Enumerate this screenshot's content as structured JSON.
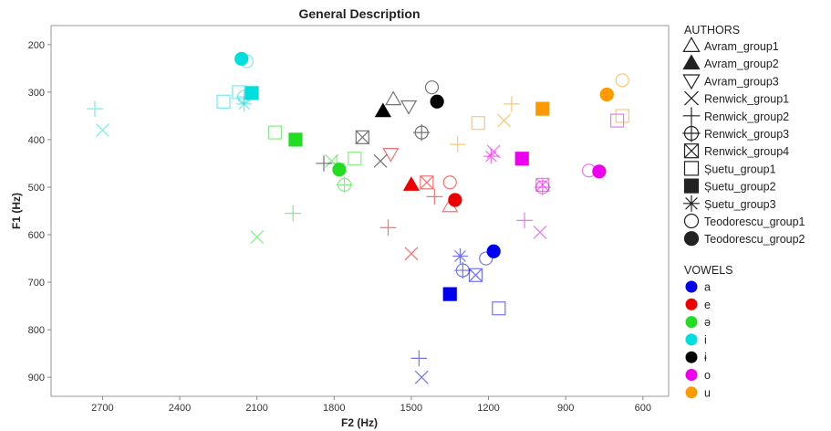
{
  "chart_data": {
    "type": "scatter",
    "title": "General Description",
    "xlabel": "F2 (Hz)",
    "ylabel": "F1 (Hz)",
    "x_reversed": true,
    "y_reversed": true,
    "xlim": [
      2900,
      500
    ],
    "ylim": [
      160,
      940
    ],
    "xticks": [
      2700,
      2400,
      2100,
      1800,
      1500,
      1200,
      900,
      600
    ],
    "yticks": [
      200,
      300,
      400,
      500,
      600,
      700,
      800,
      900
    ],
    "grid": false,
    "legend_placement": "right",
    "authors_title": "AUTHORS",
    "vowels_title": "VOWELS",
    "authors": [
      {
        "name": "Avram_group1",
        "marker": "triangle-up",
        "filled": false
      },
      {
        "name": "Avram_group2",
        "marker": "triangle-up",
        "filled": true
      },
      {
        "name": "Avram_group3",
        "marker": "triangle-down",
        "filled": false
      },
      {
        "name": "Renwick_group1",
        "marker": "x",
        "filled": false
      },
      {
        "name": "Renwick_group2",
        "marker": "plus",
        "filled": false
      },
      {
        "name": "Renwick_group3",
        "marker": "circle-plus",
        "filled": false
      },
      {
        "name": "Renwick_group4",
        "marker": "square-x",
        "filled": false
      },
      {
        "name": "Șuetu_group1",
        "marker": "square",
        "filled": false
      },
      {
        "name": "Șuetu_group2",
        "marker": "square",
        "filled": true
      },
      {
        "name": "Șuetu_group3",
        "marker": "asterisk",
        "filled": false
      },
      {
        "name": "Teodorescu_group1",
        "marker": "circle",
        "filled": false
      },
      {
        "name": "Teodorescu_group2",
        "marker": "circle",
        "filled": true
      }
    ],
    "vowels": [
      {
        "name": "a",
        "color": "#0000ee"
      },
      {
        "name": "e",
        "color": "#ee0000"
      },
      {
        "name": "ə",
        "color": "#22dd22"
      },
      {
        "name": "i",
        "color": "#00dddd"
      },
      {
        "name": "ɨ",
        "color": "#000000"
      },
      {
        "name": "o",
        "color": "#ee00ee"
      },
      {
        "name": "u",
        "color": "#ff9900"
      }
    ],
    "points": [
      {
        "author": "Avram_group1",
        "vowel": "e",
        "x": 1350,
        "y": 540
      },
      {
        "author": "Avram_group1",
        "vowel": "ɨ",
        "x": 1570,
        "y": 315
      },
      {
        "author": "Avram_group2",
        "vowel": "e",
        "x": 1500,
        "y": 495
      },
      {
        "author": "Avram_group2",
        "vowel": "ɨ",
        "x": 1610,
        "y": 340
      },
      {
        "author": "Avram_group3",
        "vowel": "e",
        "x": 1580,
        "y": 430
      },
      {
        "author": "Avram_group3",
        "vowel": "ɨ",
        "x": 1510,
        "y": 330
      },
      {
        "author": "Renwick_group1",
        "vowel": "a",
        "x": 1460,
        "y": 900
      },
      {
        "author": "Renwick_group1",
        "vowel": "e",
        "x": 1500,
        "y": 640
      },
      {
        "author": "Renwick_group1",
        "vowel": "ə",
        "x": 2100,
        "y": 605
      },
      {
        "author": "Renwick_group1",
        "vowel": "ə",
        "x": 1810,
        "y": 445
      },
      {
        "author": "Renwick_group1",
        "vowel": "i",
        "x": 2700,
        "y": 380
      },
      {
        "author": "Renwick_group1",
        "vowel": "o",
        "x": 1180,
        "y": 425
      },
      {
        "author": "Renwick_group1",
        "vowel": "o",
        "x": 1000,
        "y": 595
      },
      {
        "author": "Renwick_group1",
        "vowel": "u",
        "x": 1140,
        "y": 360
      },
      {
        "author": "Renwick_group1",
        "vowel": "ɨ",
        "x": 1620,
        "y": 445
      },
      {
        "author": "Renwick_group2",
        "vowel": "a",
        "x": 1470,
        "y": 860
      },
      {
        "author": "Renwick_group2",
        "vowel": "e",
        "x": 1590,
        "y": 585
      },
      {
        "author": "Renwick_group2",
        "vowel": "e",
        "x": 1410,
        "y": 520
      },
      {
        "author": "Renwick_group2",
        "vowel": "ə",
        "x": 1960,
        "y": 555
      },
      {
        "author": "Renwick_group2",
        "vowel": "ə",
        "x": 1790,
        "y": 450
      },
      {
        "author": "Renwick_group2",
        "vowel": "i",
        "x": 2730,
        "y": 335
      },
      {
        "author": "Renwick_group2",
        "vowel": "o",
        "x": 1060,
        "y": 570
      },
      {
        "author": "Renwick_group2",
        "vowel": "u",
        "x": 1320,
        "y": 410
      },
      {
        "author": "Renwick_group2",
        "vowel": "u",
        "x": 1110,
        "y": 325
      },
      {
        "author": "Renwick_group2",
        "vowel": "ɨ",
        "x": 1840,
        "y": 450
      },
      {
        "author": "Renwick_group3",
        "vowel": "a",
        "x": 1300,
        "y": 675
      },
      {
        "author": "Renwick_group3",
        "vowel": "ə",
        "x": 1760,
        "y": 495
      },
      {
        "author": "Renwick_group3",
        "vowel": "i",
        "x": 2150,
        "y": 310
      },
      {
        "author": "Renwick_group3",
        "vowel": "o",
        "x": 990,
        "y": 500
      },
      {
        "author": "Renwick_group3",
        "vowel": "ɨ",
        "x": 1460,
        "y": 385
      },
      {
        "author": "Renwick_group4",
        "vowel": "a",
        "x": 1250,
        "y": 685
      },
      {
        "author": "Renwick_group4",
        "vowel": "e",
        "x": 1440,
        "y": 490
      },
      {
        "author": "Renwick_group4",
        "vowel": "o",
        "x": 990,
        "y": 495
      },
      {
        "author": "Renwick_group4",
        "vowel": "ɨ",
        "x": 1690,
        "y": 395
      },
      {
        "author": "Șuetu_group1",
        "vowel": "a",
        "x": 1160,
        "y": 755
      },
      {
        "author": "Șuetu_group1",
        "vowel": "ə",
        "x": 2030,
        "y": 385
      },
      {
        "author": "Șuetu_group1",
        "vowel": "ə",
        "x": 1720,
        "y": 440
      },
      {
        "author": "Șuetu_group1",
        "vowel": "i",
        "x": 2230,
        "y": 320
      },
      {
        "author": "Șuetu_group1",
        "vowel": "i",
        "x": 2170,
        "y": 300
      },
      {
        "author": "Șuetu_group1",
        "vowel": "o",
        "x": 700,
        "y": 360
      },
      {
        "author": "Șuetu_group1",
        "vowel": "u",
        "x": 1240,
        "y": 365
      },
      {
        "author": "Șuetu_group1",
        "vowel": "u",
        "x": 680,
        "y": 350
      },
      {
        "author": "Șuetu_group2",
        "vowel": "a",
        "x": 1350,
        "y": 725
      },
      {
        "author": "Șuetu_group2",
        "vowel": "ə",
        "x": 1950,
        "y": 400
      },
      {
        "author": "Șuetu_group2",
        "vowel": "i",
        "x": 2120,
        "y": 302
      },
      {
        "author": "Șuetu_group2",
        "vowel": "o",
        "x": 1070,
        "y": 440
      },
      {
        "author": "Șuetu_group2",
        "vowel": "u",
        "x": 990,
        "y": 335
      },
      {
        "author": "Șuetu_group3",
        "vowel": "a",
        "x": 1310,
        "y": 645
      },
      {
        "author": "Șuetu_group3",
        "vowel": "i",
        "x": 2150,
        "y": 325
      },
      {
        "author": "Șuetu_group3",
        "vowel": "o",
        "x": 1190,
        "y": 435
      },
      {
        "author": "Teodorescu_group1",
        "vowel": "a",
        "x": 1210,
        "y": 650
      },
      {
        "author": "Teodorescu_group1",
        "vowel": "e",
        "x": 1350,
        "y": 490
      },
      {
        "author": "Teodorescu_group1",
        "vowel": "i",
        "x": 2140,
        "y": 235
      },
      {
        "author": "Teodorescu_group1",
        "vowel": "o",
        "x": 810,
        "y": 465
      },
      {
        "author": "Teodorescu_group1",
        "vowel": "u",
        "x": 680,
        "y": 275
      },
      {
        "author": "Teodorescu_group1",
        "vowel": "ɨ",
        "x": 1420,
        "y": 290
      },
      {
        "author": "Teodorescu_group2",
        "vowel": "a",
        "x": 1180,
        "y": 635
      },
      {
        "author": "Teodorescu_group2",
        "vowel": "e",
        "x": 1330,
        "y": 527
      },
      {
        "author": "Teodorescu_group2",
        "vowel": "ə",
        "x": 1780,
        "y": 463
      },
      {
        "author": "Teodorescu_group2",
        "vowel": "i",
        "x": 2160,
        "y": 230
      },
      {
        "author": "Teodorescu_group2",
        "vowel": "o",
        "x": 770,
        "y": 467
      },
      {
        "author": "Teodorescu_group2",
        "vowel": "u",
        "x": 740,
        "y": 305
      },
      {
        "author": "Teodorescu_group2",
        "vowel": "ɨ",
        "x": 1400,
        "y": 320
      }
    ]
  }
}
